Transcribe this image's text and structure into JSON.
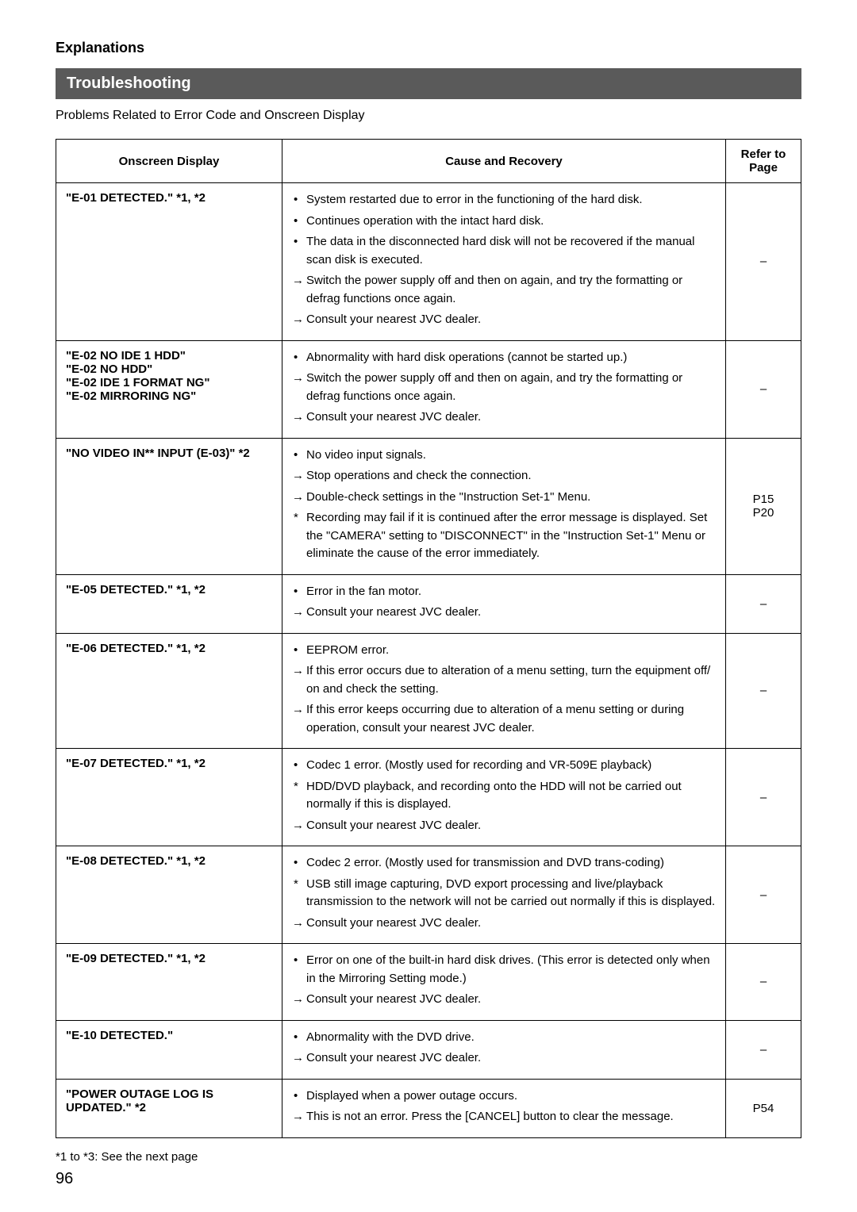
{
  "header": {
    "section_label": "Explanations",
    "banner": "Troubleshooting",
    "subtitle": "Problems Related to Error Code and Onscreen Display"
  },
  "table": {
    "headers": {
      "onscreen": "Onscreen Display",
      "cause": "Cause and Recovery",
      "refer": "Refer to Page"
    },
    "rows": [
      {
        "onscreen": "\"E-01 DETECTED.\" *1, *2",
        "bullets": [
          "System restarted due to error in the functioning of the hard disk.",
          "Continues operation with the intact hard disk.",
          "The data in the disconnected hard disk will not be recovered if the manual scan disk is executed."
        ],
        "arrows": [
          "Switch the power supply off and then on again, and try the formatting or defrag functions once again.",
          "Consult your nearest JVC dealer."
        ],
        "refer": "–"
      },
      {
        "onscreen": "\"E-02 NO IDE 1 HDD\"\n\"E-02 NO HDD\"\n\"E-02 IDE 1 FORMAT NG\"\n\"E-02 MIRRORING NG\"",
        "bullets": [
          "Abnormality with hard disk operations (cannot be started up.)"
        ],
        "arrows": [
          "Switch the power supply off and then on again, and try the formatting or defrag functions once again.",
          "Consult your nearest JVC dealer."
        ],
        "refer": "–"
      },
      {
        "onscreen": "\"NO VIDEO IN** INPUT (E-03)\" *2",
        "bullets": [
          "No video input signals."
        ],
        "arrows": [
          "Stop operations and check the connection.",
          "Double-check settings in the \"Instruction Set-1\" Menu."
        ],
        "stars": [
          "Recording may fail if it is continued after the error message is displayed. Set the \"CAMERA\" setting to \"DISCONNECT\" in the \"Instruction Set-1\" Menu or eliminate the cause of the error immediately."
        ],
        "refer": "P15\nP20"
      },
      {
        "onscreen": "\"E-05 DETECTED.\" *1, *2",
        "bullets": [
          "Error in the fan motor."
        ],
        "arrows": [
          "Consult your nearest JVC dealer."
        ],
        "refer": "–"
      },
      {
        "onscreen": "\"E-06 DETECTED.\" *1, *2",
        "bullets": [
          "EEPROM error."
        ],
        "arrows": [
          "If this error occurs due to alteration of a menu setting, turn the equipment off/ on and check the setting.",
          "If this error keeps occurring due to alteration of a menu setting or during operation, consult your nearest JVC dealer."
        ],
        "refer": "–"
      },
      {
        "onscreen": "\"E-07 DETECTED.\" *1, *2",
        "bullets": [
          "Codec 1 error. (Mostly used for recording and VR-509E playback)"
        ],
        "stars": [
          "HDD/DVD playback, and recording onto the HDD will not be carried out normally if this is displayed."
        ],
        "arrows": [
          "Consult your nearest JVC dealer."
        ],
        "refer": "–"
      },
      {
        "onscreen": "\"E-08 DETECTED.\" *1, *2",
        "bullets": [
          "Codec 2 error. (Mostly used for transmission and DVD trans-coding)"
        ],
        "stars": [
          "USB still image capturing, DVD export processing and live/playback transmission to the network will not be carried out normally if this is displayed."
        ],
        "arrows": [
          "Consult your nearest JVC dealer."
        ],
        "refer": "–"
      },
      {
        "onscreen": "\"E-09 DETECTED.\" *1, *2",
        "bullets": [
          "Error on one of the built-in hard disk drives. (This error is detected only when in the Mirroring Setting mode.)"
        ],
        "arrows": [
          "Consult your nearest JVC dealer."
        ],
        "refer": "–"
      },
      {
        "onscreen": "\"E-10 DETECTED.\"",
        "bullets": [
          "Abnormality with the DVD drive."
        ],
        "arrows": [
          "Consult your nearest JVC dealer."
        ],
        "refer": "–"
      },
      {
        "onscreen": "\"POWER OUTAGE LOG IS UPDATED.\" *2",
        "bullets": [
          "Displayed when a power outage occurs."
        ],
        "arrows": [
          "This is not an error. Press the [CANCEL] button to clear the message."
        ],
        "refer": "P54"
      }
    ]
  },
  "footnote": "*1 to *3: See the next page",
  "page_number": "96"
}
